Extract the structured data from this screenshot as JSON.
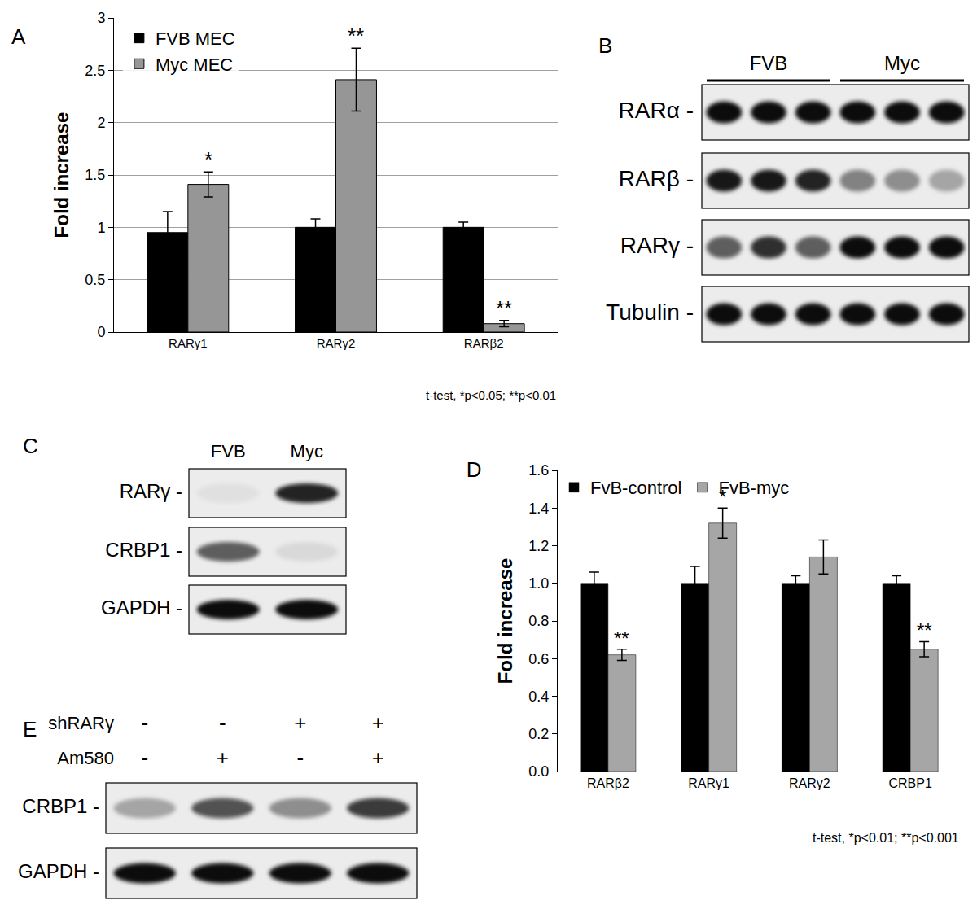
{
  "chart_data": [
    {
      "type": "bar",
      "title": "A",
      "categories": [
        "RARγ1",
        "RARγ2",
        "RARβ2"
      ],
      "series": [
        {
          "name": "FVB MEC",
          "color": "#000000",
          "values": [
            0.95,
            1.0,
            1.0
          ],
          "errors": [
            0.2,
            0.08,
            0.05
          ]
        },
        {
          "name": "Myc MEC",
          "color": "#969696",
          "values": [
            1.41,
            2.41,
            0.08
          ],
          "errors": [
            0.12,
            0.3,
            0.03
          ]
        }
      ],
      "y_label": "Fold increase",
      "ylim": [
        0,
        3
      ],
      "yticks": [
        0,
        0.5,
        1,
        1.5,
        2,
        2.5,
        3
      ],
      "grid": true,
      "legend": "top-left",
      "annotations": [
        {
          "text": "*",
          "category": "RARγ1",
          "series": "Myc MEC"
        },
        {
          "text": "**",
          "category": "RARγ2",
          "series": "Myc MEC"
        },
        {
          "text": "**",
          "category": "RARβ2",
          "series": "Myc MEC"
        }
      ],
      "note": "t-test, *p<0.05; **p<0.01"
    },
    {
      "type": "bar",
      "title": "D",
      "categories": [
        "RARβ2",
        "RARγ1",
        "RARγ2",
        "CRBP1"
      ],
      "series": [
        {
          "name": "FvB-control",
          "color": "#000000",
          "values": [
            1.0,
            1.0,
            1.0,
            1.0
          ],
          "errors": [
            0.06,
            0.09,
            0.04,
            0.04
          ]
        },
        {
          "name": "FvB-myc",
          "color": "#a6a6a6",
          "values": [
            0.62,
            1.32,
            1.14,
            0.65
          ],
          "errors": [
            0.03,
            0.08,
            0.09,
            0.04
          ]
        }
      ],
      "y_label": "Fold increase",
      "ylim": [
        0,
        1.6
      ],
      "yticks": [
        {
          "value": 0,
          "label": "0.0"
        },
        {
          "value": 0.2,
          "label": "0.2"
        },
        {
          "value": 0.4,
          "label": "0.4"
        },
        {
          "value": 0.6,
          "label": "0.6"
        },
        {
          "value": 0.8,
          "label": "0.8"
        },
        {
          "value": 1,
          "label": "1.0"
        },
        {
          "value": 1.2,
          "label": "1.2"
        },
        {
          "value": 1.4,
          "label": "1.4"
        },
        {
          "value": 1.6,
          "label": "1.6"
        }
      ],
      "grid": false,
      "legend": "top",
      "annotations": [
        {
          "text": "**",
          "category": "RARβ2",
          "series": "FvB-myc"
        },
        {
          "text": "*",
          "category": "RARγ1",
          "series": "FvB-myc"
        },
        {
          "text": "**",
          "category": "CRBP1",
          "series": "FvB-myc"
        }
      ],
      "note": "t-test, *p<0.01; **p<0.001"
    }
  ],
  "blots": [
    {
      "panel": "B",
      "groups": [
        {
          "label": "FVB",
          "lanes": 3
        },
        {
          "label": "Myc",
          "lanes": 3
        }
      ],
      "rows": [
        {
          "label": "RARα -",
          "bands": [
            0.95,
            0.95,
            0.95,
            0.95,
            0.95,
            0.95
          ]
        },
        {
          "label": "RARβ -",
          "bands": [
            0.9,
            0.9,
            0.85,
            0.45,
            0.4,
            0.3
          ]
        },
        {
          "label": "RARγ -",
          "bands": [
            0.6,
            0.8,
            0.6,
            0.95,
            0.95,
            0.95
          ]
        },
        {
          "label": "Tubulin -",
          "bands": [
            0.95,
            0.95,
            0.95,
            0.95,
            0.95,
            0.95
          ]
        }
      ]
    },
    {
      "panel": "C",
      "lanes": [
        "FVB",
        "Myc"
      ],
      "rows": [
        {
          "label": "RARγ -",
          "bands": [
            0.05,
            0.85
          ]
        },
        {
          "label": "CRBP1 -",
          "bands": [
            0.6,
            0.08
          ]
        },
        {
          "label": "GAPDH -",
          "bands": [
            0.95,
            0.95
          ]
        }
      ]
    },
    {
      "panel": "E",
      "conditions": [
        {
          "label": "shRARγ",
          "values": [
            "-",
            "-",
            "+",
            "+"
          ]
        },
        {
          "label": "Am580",
          "values": [
            "-",
            "+",
            "-",
            "+"
          ]
        }
      ],
      "rows": [
        {
          "label": "CRBP1 -",
          "bands": [
            0.3,
            0.65,
            0.4,
            0.75
          ]
        },
        {
          "label": "GAPDH -",
          "bands": [
            0.95,
            0.95,
            0.95,
            0.95
          ]
        }
      ]
    }
  ]
}
